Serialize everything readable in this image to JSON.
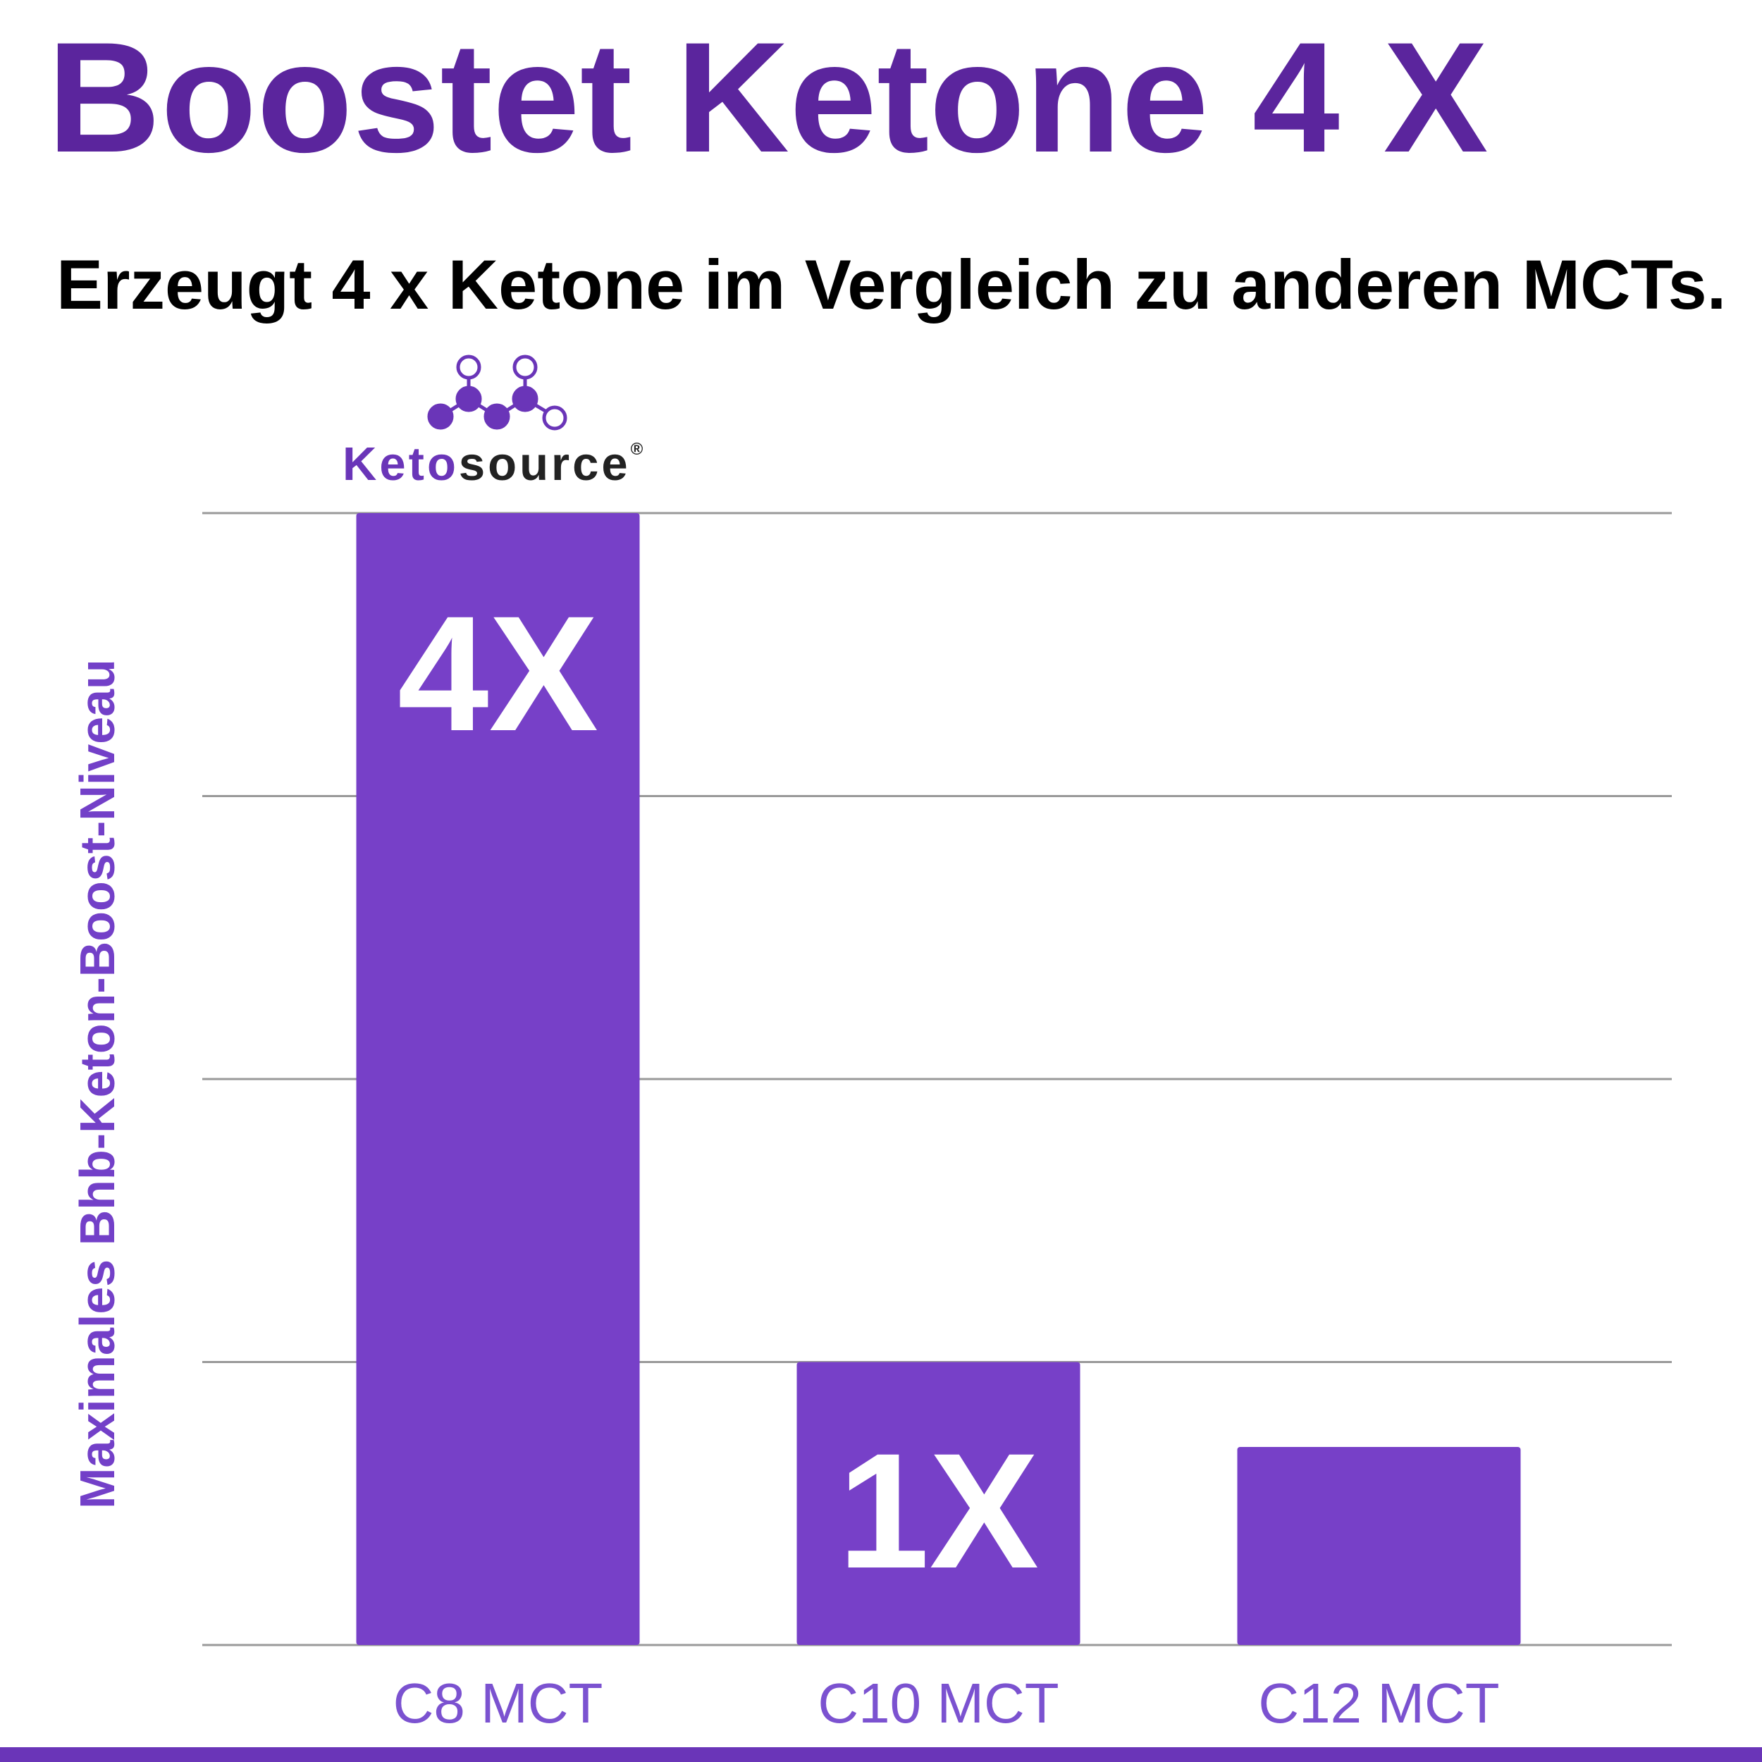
{
  "header": {
    "title": "Boostet Ketone 4 X",
    "subtitle": "Erzeugt 4 x Ketone im Vergleich zu anderen MCTs."
  },
  "logo": {
    "brand_start": "Keto",
    "brand_end": "source",
    "registered": "®"
  },
  "chart_data": {
    "type": "bar",
    "y_label": "Maximales Bhb-Keton-Boost-Niveau",
    "categories": [
      "C8 MCT",
      "C10 MCT",
      "C12 MCT"
    ],
    "values": [
      4,
      1,
      0.7
    ],
    "value_labels": [
      "4X",
      "1X",
      null
    ],
    "color": "#7740c8",
    "ylim": [
      0,
      4
    ],
    "yticks": [
      0,
      1,
      2,
      3,
      4
    ],
    "grid": true
  }
}
